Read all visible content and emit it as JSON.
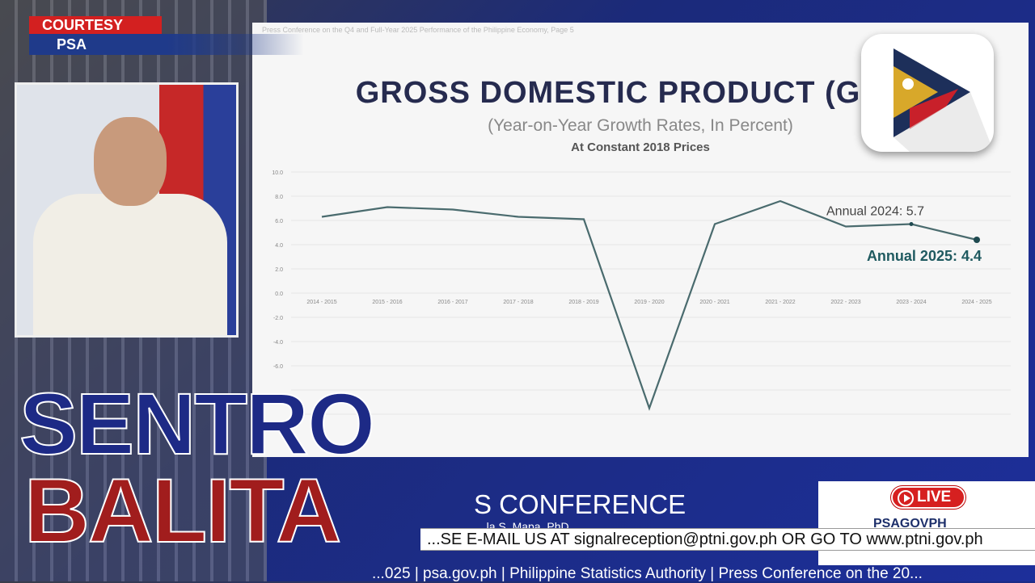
{
  "overlay": {
    "courtesy_label": "COURTESY",
    "source_label": "PSA",
    "show_title_line1": "SENTRO",
    "show_title_line2": "BALITA",
    "conference_title": "PRESS CONFERENCE",
    "conference_title_visible": "S CONFERENCE",
    "speaker_partial": "...la S. Mapa, PhD",
    "live_label": "LIVE",
    "facebook_partial": "PSAGOVPH",
    "ticker_text": "...SE E-MAIL US AT signalreception@ptni.gov.ph OR GO TO www.ptni.gov.ph",
    "ticker_visible": "E-MAIL US AT signalreception@ptni.gov.ph OR GO TO www.ptni.g",
    "bottom_line": "...025 | psa.gov.ph | Philippine Statistics Authority | Press Conference on the 20...",
    "colors": {
      "sentro": "#1d2a86",
      "balita": "#a11d1d",
      "courtesy": "#d32020",
      "live": "#d62020"
    }
  },
  "slide": {
    "header": "Press Conference on the Q4 and Full-Year 2025 Performance of the Philippine Economy, Page 5",
    "title": "GROSS DOMESTIC PRODUCT (G",
    "subtitle": "(Year-on-Year Growth Rates, In Percent)",
    "subtitle2": "At Constant 2018 Prices"
  },
  "chart_data": {
    "type": "line",
    "title": "GROSS DOMESTIC PRODUCT (G",
    "subtitle": "(Year-on-Year Growth Rates, In Percent)",
    "categories": [
      "2014 - 2015",
      "2015 - 2016",
      "2016 - 2017",
      "2017 - 2018",
      "2018 - 2019",
      "2019 - 2020",
      "2020 - 2021",
      "2021 - 2022",
      "2022 - 2023",
      "2023 - 2024",
      "2024 - 2025"
    ],
    "values": [
      6.3,
      7.1,
      6.9,
      6.3,
      6.1,
      -9.5,
      5.7,
      7.6,
      5.5,
      5.7,
      4.4
    ],
    "yticks": [
      "10.0",
      "8.0",
      "6.0",
      "4.0",
      "2.0",
      "0.0",
      "-2.0",
      "-4.0",
      "-6.0"
    ],
    "ylim": [
      -10,
      10
    ],
    "grid": true,
    "line_color": "#4a6b6e",
    "annotations": [
      {
        "category": "2023 - 2024",
        "text": "Annual 2024: 5.7",
        "color": "#444444"
      },
      {
        "category": "2024 - 2025",
        "text": "Annual 2025: 4.4",
        "color": "#1f5a60"
      }
    ]
  }
}
